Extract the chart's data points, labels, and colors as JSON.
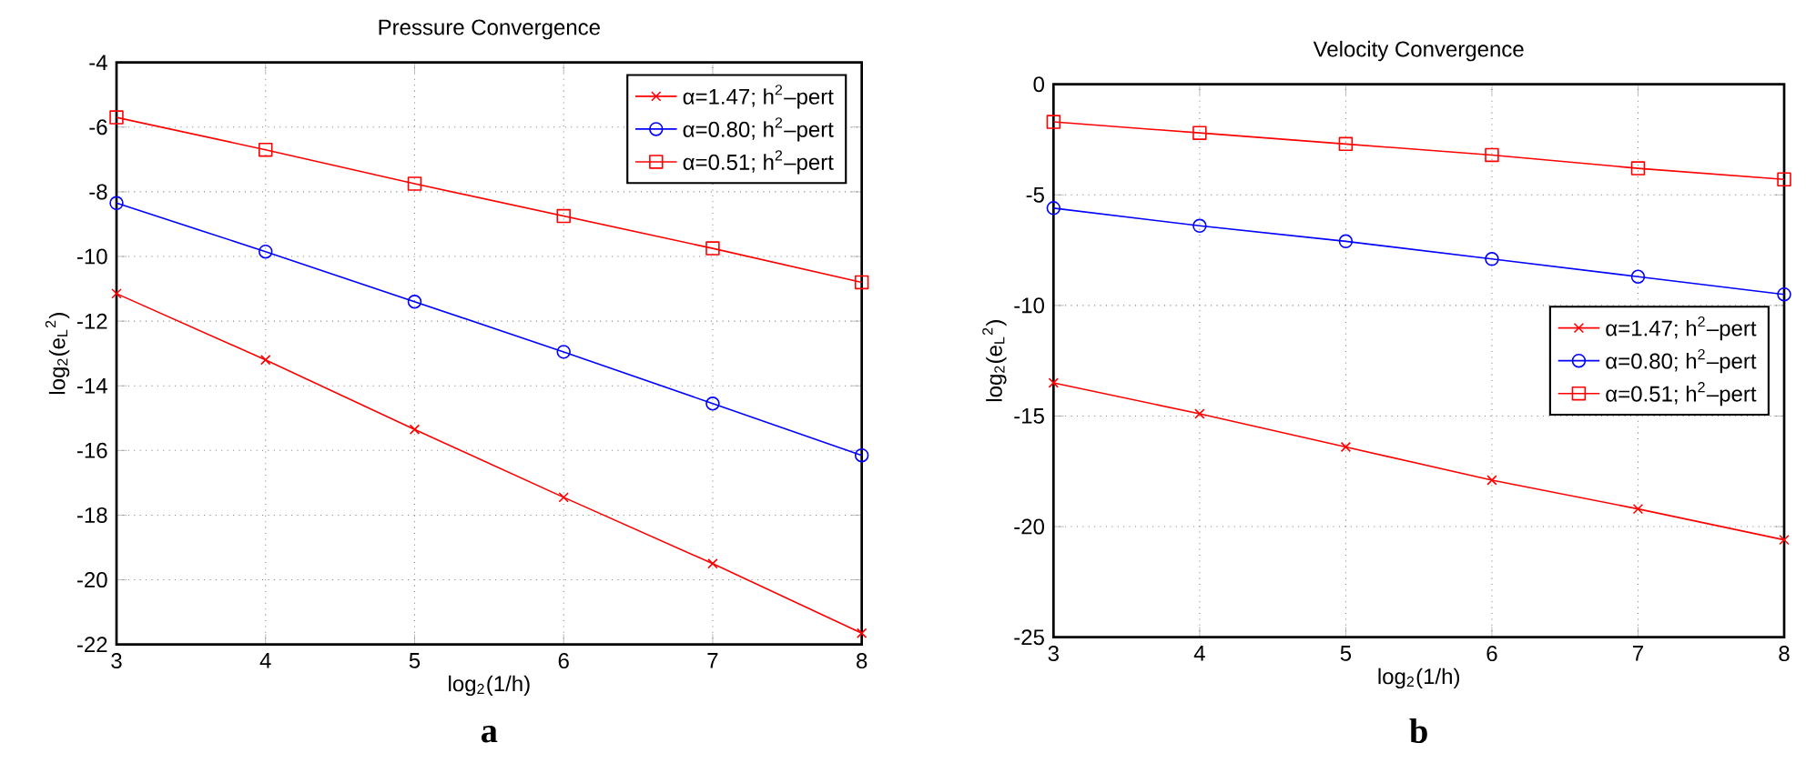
{
  "chart_data": [
    {
      "type": "line",
      "title": "Pressure Convergence",
      "xlabel": "log$_{2}$(1/h)",
      "ylabel": "log$_{2}$(e$_{L}$$^{2}$)",
      "annotations": [
        "a"
      ],
      "x": [
        3,
        4,
        5,
        6,
        7,
        8
      ],
      "xlim": [
        3,
        8
      ],
      "xticks": [
        3,
        4,
        5,
        6,
        7,
        8
      ],
      "ylim": [
        -22,
        -4
      ],
      "yticks": [
        -22,
        -20,
        -18,
        -16,
        -14,
        -12,
        -10,
        -8,
        -6,
        -4
      ],
      "grid": true,
      "legend": "top right",
      "line_style": "solid",
      "series": [
        {
          "name": "α=1.47; h$^{2}$–pert",
          "color": "#ff0000",
          "marker": "cross",
          "values": [
            -11.15,
            -13.2,
            -15.35,
            -17.45,
            -19.5,
            -21.65
          ]
        },
        {
          "name": "α=0.80; h$^{2}$–pert",
          "color": "#0000ff",
          "marker": "circle",
          "values": [
            -8.35,
            -9.85,
            -11.4,
            -12.95,
            -14.55,
            -16.15
          ]
        },
        {
          "name": "α=0.51; h$^{2}$–pert",
          "color": "#ff0000",
          "marker": "square",
          "values": [
            -5.7,
            -6.7,
            -7.75,
            -8.75,
            -9.75,
            -10.8
          ]
        }
      ]
    },
    {
      "type": "line",
      "title": "Velocity Convergence",
      "xlabel": "log$_{2}$(1/h)",
      "ylabel": "log$_{2}$(e$_{L}$$^{2}$)",
      "annotations": [
        "b"
      ],
      "x": [
        3,
        4,
        5,
        6,
        7,
        8
      ],
      "xlim": [
        3,
        8
      ],
      "xticks": [
        3,
        4,
        5,
        6,
        7,
        8
      ],
      "ylim": [
        -25,
        0
      ],
      "yticks": [
        -25,
        -20,
        -15,
        -10,
        -5,
        0
      ],
      "grid": true,
      "legend": "right",
      "line_style": "solid",
      "series": [
        {
          "name": "α=1.47; h$^{2}$–pert",
          "color": "#ff0000",
          "marker": "cross",
          "values": [
            -13.5,
            -14.9,
            -16.4,
            -17.9,
            -19.2,
            -20.6
          ]
        },
        {
          "name": "α=0.80; h$^{2}$–pert",
          "color": "#0000ff",
          "marker": "circle",
          "values": [
            -5.6,
            -6.4,
            -7.1,
            -7.9,
            -8.7,
            -9.5
          ]
        },
        {
          "name": "α=0.51; h$^{2}$–pert",
          "color": "#ff0000",
          "marker": "square",
          "values": [
            -1.7,
            -2.2,
            -2.7,
            -3.2,
            -3.8,
            -4.3
          ]
        }
      ]
    }
  ]
}
